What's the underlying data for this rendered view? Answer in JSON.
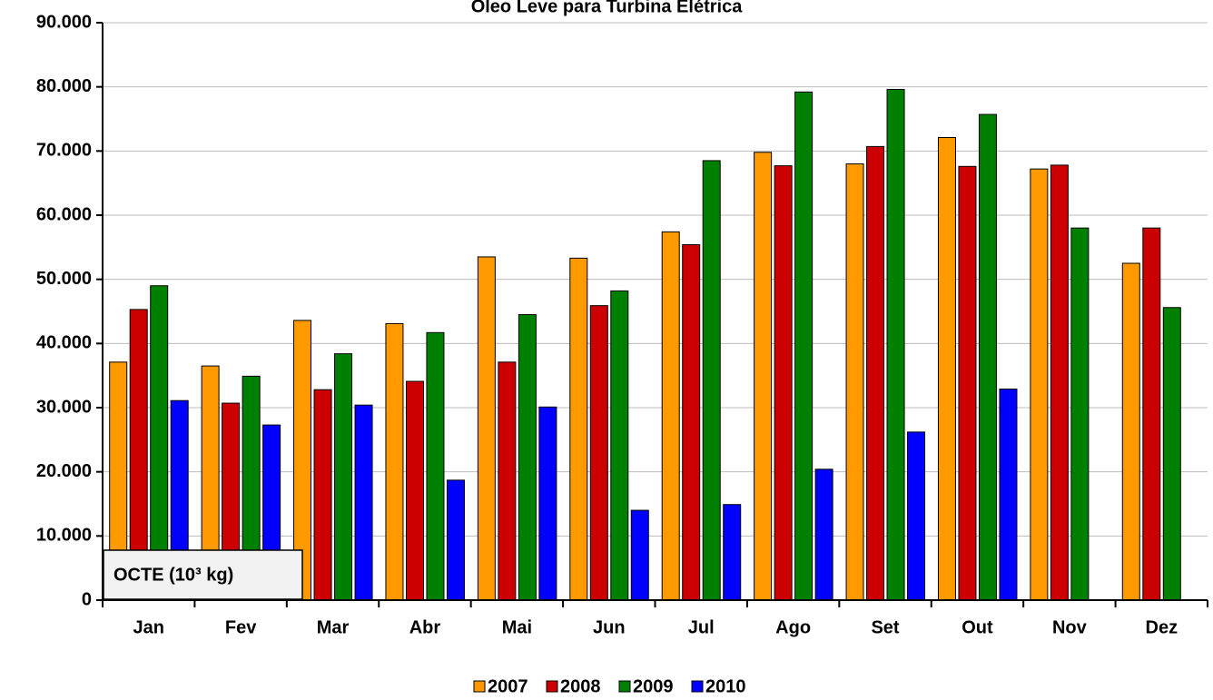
{
  "chart_data": {
    "type": "bar",
    "title": "Óleo Leve para Turbina Elétrica",
    "annotation": "OCTE (10³ kg)",
    "categories": [
      "Jan",
      "Fev",
      "Mar",
      "Abr",
      "Mai",
      "Jun",
      "Jul",
      "Ago",
      "Set",
      "Out",
      "Nov",
      "Dez"
    ],
    "series": [
      {
        "name": "2007",
        "color": "#ff9900",
        "values": [
          37100,
          36500,
          43600,
          43100,
          53500,
          53300,
          57400,
          69800,
          68000,
          72100,
          67200,
          52500
        ]
      },
      {
        "name": "2008",
        "color": "#cc0000",
        "values": [
          45300,
          30700,
          32800,
          34100,
          37100,
          45900,
          55400,
          67700,
          70700,
          67600,
          67800,
          58000
        ]
      },
      {
        "name": "2009",
        "color": "#008000",
        "values": [
          49000,
          34900,
          38400,
          41700,
          44500,
          48200,
          68500,
          79200,
          79600,
          75700,
          58000,
          45600
        ]
      },
      {
        "name": "2010",
        "color": "#0000ff",
        "values": [
          31100,
          27300,
          30400,
          18700,
          30100,
          14000,
          14900,
          20400,
          26200,
          32900,
          null,
          null
        ]
      }
    ],
    "ylim": [
      0,
      90000
    ],
    "yticks": [
      0,
      {
        "value": 10000,
        "label": "10.000"
      },
      {
        "value": 20000,
        "label": "20.000"
      },
      {
        "value": 30000,
        "label": "30.000"
      },
      {
        "value": 40000,
        "label": "40.000"
      },
      {
        "value": 50000,
        "label": "50.000"
      },
      {
        "value": 60000,
        "label": "60.000"
      },
      {
        "value": 70000,
        "label": "70.000"
      },
      {
        "value": 80000,
        "label": "80.000"
      },
      {
        "value": 90000,
        "label": "90.000"
      }
    ],
    "grid": true,
    "legend": "bottom"
  }
}
